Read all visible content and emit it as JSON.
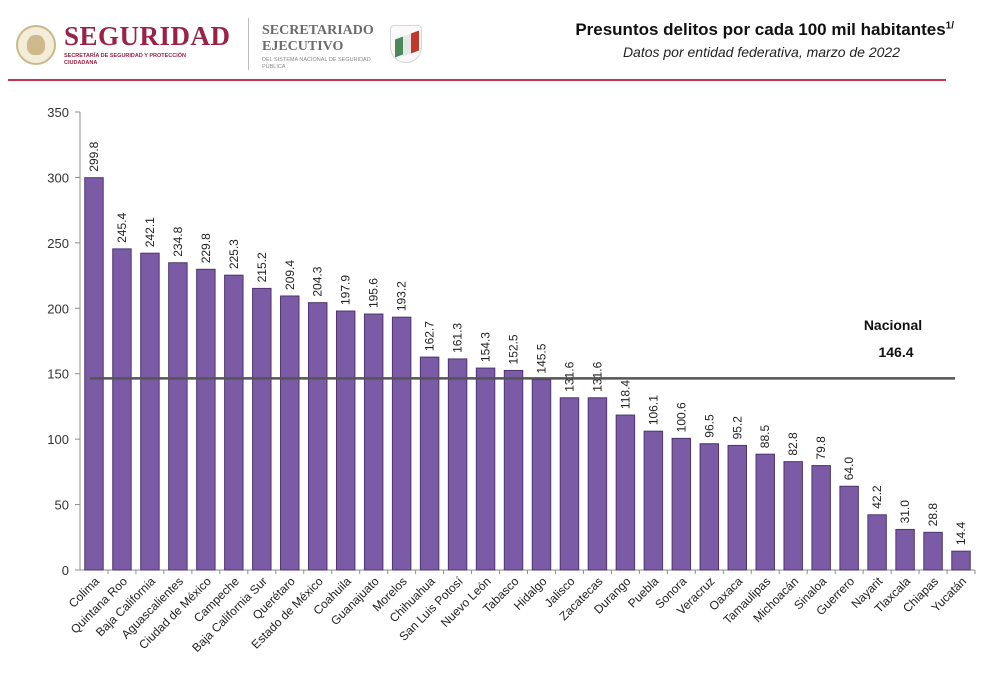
{
  "header": {
    "brand": "SEGURIDAD",
    "brand_sub": "SECRETARÍA DE SEGURIDAD Y PROTECCIÓN CIUDADANA",
    "secretariado": "SECRETARIADO EJECUTIVO",
    "secretariado_sub": "DEL SISTEMA NACIONAL DE SEGURIDAD PÚBLICA",
    "logo_icon": "national-seal-icon",
    "shield_icon": "tricolor-shield-icon",
    "accent": "#9b2247"
  },
  "chart_data": {
    "type": "bar",
    "title": "Presuntos delitos por cada 100 mil habitantes",
    "title_sup": "1/",
    "subtitle": "Datos por entidad federativa, marzo de 2022",
    "categories": [
      "Colima",
      "Quintana Roo",
      "Baja California",
      "Aguascalientes",
      "Ciudad de México",
      "Campeche",
      "Baja California Sur",
      "Querétaro",
      "Estado de México",
      "Coahuila",
      "Guanajuato",
      "Morelos",
      "Chihuahua",
      "San Luis Potosí",
      "Nuevo León",
      "Tabasco",
      "Hidalgo",
      "Jalisco",
      "Zacatecas",
      "Durango",
      "Puebla",
      "Sonora",
      "Veracruz",
      "Oaxaca",
      "Tamaulipas",
      "Michoacán",
      "Sinaloa",
      "Guerrero",
      "Nayarit",
      "Tlaxcala",
      "Chiapas",
      "Yucatán"
    ],
    "values": [
      299.8,
      245.4,
      242.1,
      234.8,
      229.8,
      225.3,
      215.2,
      209.4,
      204.3,
      197.9,
      195.6,
      193.2,
      162.7,
      161.3,
      154.3,
      152.5,
      145.5,
      131.6,
      131.6,
      118.4,
      106.1,
      100.6,
      96.5,
      95.2,
      88.5,
      82.8,
      79.8,
      64.0,
      42.2,
      31.0,
      28.8,
      14.4
    ],
    "value_labels": [
      "299.8",
      "245.4",
      "242.1",
      "234.8",
      "229.8",
      "225.3",
      "215.2",
      "209.4",
      "204.3",
      "197.9",
      "195.6",
      "193.2",
      "162.7",
      "161.3",
      "154.3",
      "152.5",
      "145.5",
      "131.6",
      "131.6",
      "118.4",
      "106.1",
      "100.6",
      "96.5",
      "95.2",
      "88.5",
      "82.8",
      "79.8",
      "64.0",
      "42.2",
      "31.0",
      "28.8",
      "14.4"
    ],
    "ylim": [
      0,
      350
    ],
    "yticks": [
      "0",
      "50",
      "100",
      "150",
      "200",
      "250",
      "300",
      "350"
    ],
    "bar_color": "#7b5aa6",
    "bar_edge_color": "#4e3670",
    "reference_line": {
      "label": "Nacional",
      "value": 146.4,
      "value_label": "146.4",
      "color": "#555555"
    },
    "grid": false,
    "legend": "none"
  }
}
